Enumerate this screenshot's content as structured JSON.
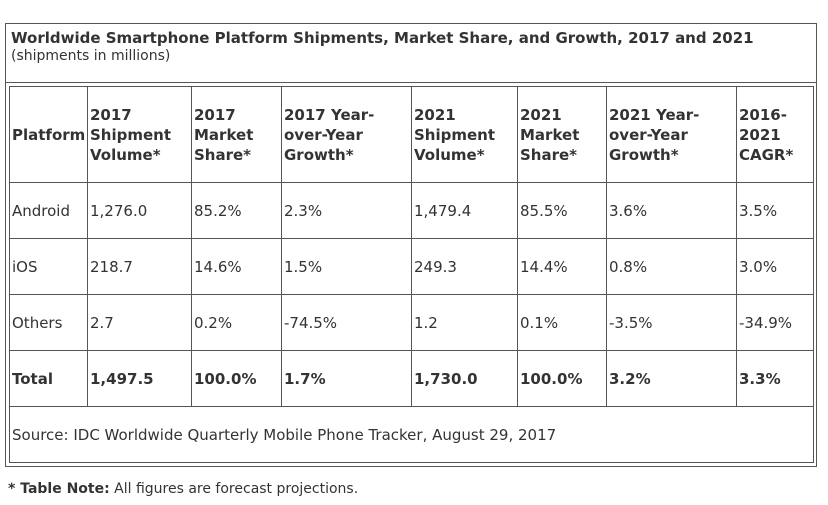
{
  "title": "Worldwide Smartphone Platform Shipments, Market Share, and Growth, 2017 and 2021",
  "subtitle": "(shipments in millions)",
  "headers": [
    [
      "Platform"
    ],
    [
      "2017",
      "Shipment",
      "Volume*"
    ],
    [
      "2017",
      "Market",
      "Share*"
    ],
    [
      "2017 Year-",
      "over-Year",
      "Growth*"
    ],
    [
      "2021",
      "Shipment",
      "Volume*"
    ],
    [
      "2021",
      "Market",
      "Share*"
    ],
    [
      "2021 Year-",
      "over-Year",
      "Growth*"
    ],
    [
      "2016-",
      "2021",
      "CAGR*"
    ]
  ],
  "rows": [
    [
      "Android",
      "1,276.0",
      "85.2%",
      "2.3%",
      "1,479.4",
      "85.5%",
      "3.6%",
      "3.5%"
    ],
    [
      "iOS",
      "218.7",
      "14.6%",
      "1.5%",
      "249.3",
      "14.4%",
      "0.8%",
      "3.0%"
    ],
    [
      "Others",
      "2.7",
      "0.2%",
      "-74.5%",
      "1.2",
      "0.1%",
      "-3.5%",
      "-34.9%"
    ]
  ],
  "total": [
    "Total",
    "1,497.5",
    "100.0%",
    "1.7%",
    "1,730.0",
    "100.0%",
    "3.2%",
    "3.3%"
  ],
  "source": "Source: IDC Worldwide Quarterly Mobile Phone Tracker, August 29, 2017",
  "footnote": {
    "label": "* Table Note:",
    "text": " All figures are forecast projections."
  }
}
